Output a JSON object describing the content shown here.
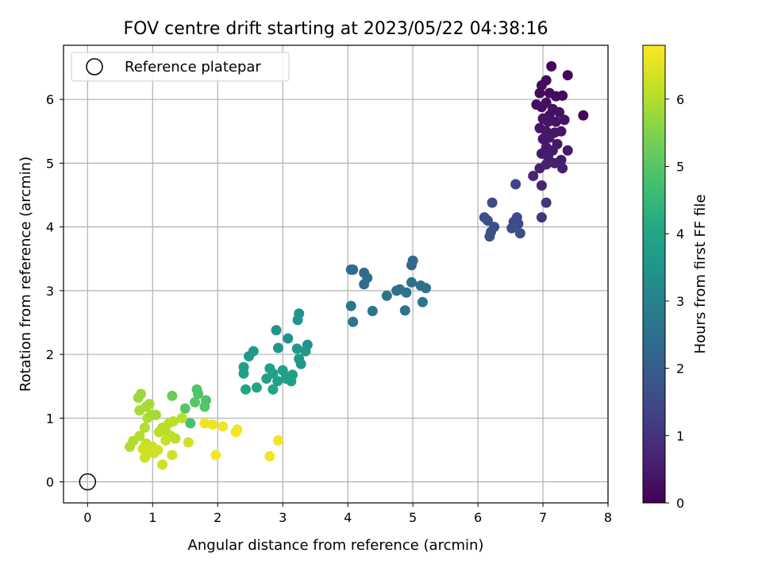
{
  "chart_data": {
    "type": "scatter",
    "title": "FOV centre drift starting at 2023/05/22 04:38:16",
    "xlabel": "Angular distance from reference (arcmin)",
    "ylabel": "Rotation from reference (arcmin)",
    "xlim": [
      -0.37,
      8.0
    ],
    "ylim": [
      -0.33,
      6.85
    ],
    "x_ticks": [
      "0",
      "1",
      "2",
      "3",
      "4",
      "5",
      "6",
      "7",
      "8"
    ],
    "y_ticks": [
      "0",
      "1",
      "2",
      "3",
      "4",
      "5",
      "6"
    ],
    "grid": true,
    "legend": {
      "location": "upper-left",
      "entries": [
        "Reference platepar"
      ]
    },
    "reference_point": {
      "x": 0,
      "y": 0,
      "label": "Reference platepar"
    },
    "colorbar": {
      "label": "Hours from first FF file",
      "colormap": "viridis",
      "range": [
        0,
        6.8
      ],
      "ticks": [
        "0",
        "1",
        "2",
        "3",
        "4",
        "5",
        "6"
      ]
    },
    "points": [
      [
        7.13,
        6.52,
        0.1
      ],
      [
        7.38,
        6.38,
        0.1
      ],
      [
        7.05,
        6.3,
        0.2
      ],
      [
        6.98,
        6.22,
        0.2
      ],
      [
        7.1,
        6.1,
        0.2
      ],
      [
        7.2,
        6.05,
        0.2
      ],
      [
        7.3,
        6.06,
        0.15
      ],
      [
        6.95,
        6.1,
        0.2
      ],
      [
        6.9,
        5.92,
        0.25
      ],
      [
        6.98,
        5.88,
        0.25
      ],
      [
        7.05,
        5.95,
        0.25
      ],
      [
        7.15,
        5.85,
        0.3
      ],
      [
        7.25,
        5.8,
        0.3
      ],
      [
        7.1,
        5.75,
        0.3
      ],
      [
        7.0,
        5.7,
        0.35
      ],
      [
        7.08,
        5.65,
        0.35
      ],
      [
        7.2,
        5.65,
        0.35
      ],
      [
        7.33,
        5.68,
        0.35
      ],
      [
        7.62,
        5.75,
        0.1
      ],
      [
        6.95,
        5.55,
        0.4
      ],
      [
        7.05,
        5.5,
        0.4
      ],
      [
        7.18,
        5.48,
        0.4
      ],
      [
        7.28,
        5.5,
        0.4
      ],
      [
        7.1,
        5.4,
        0.45
      ],
      [
        7.0,
        5.38,
        0.45
      ],
      [
        7.22,
        5.3,
        0.45
      ],
      [
        7.05,
        5.25,
        0.5
      ],
      [
        7.15,
        5.2,
        0.5
      ],
      [
        7.38,
        5.2,
        0.5
      ],
      [
        6.98,
        5.15,
        0.5
      ],
      [
        7.08,
        5.1,
        0.55
      ],
      [
        7.28,
        5.05,
        0.55
      ],
      [
        7.18,
        5.0,
        0.6
      ],
      [
        7.05,
        4.98,
        0.6
      ],
      [
        6.95,
        4.92,
        0.6
      ],
      [
        7.3,
        4.92,
        0.6
      ],
      [
        6.85,
        4.8,
        0.7
      ],
      [
        6.98,
        4.65,
        0.7
      ],
      [
        7.05,
        4.38,
        1.0
      ],
      [
        6.98,
        4.15,
        1.0
      ],
      [
        6.58,
        4.67,
        1.3
      ],
      [
        6.22,
        4.38,
        1.5
      ],
      [
        6.1,
        4.15,
        1.6
      ],
      [
        6.15,
        4.1,
        1.6
      ],
      [
        6.25,
        4.0,
        1.6
      ],
      [
        6.2,
        3.92,
        1.7
      ],
      [
        6.18,
        3.85,
        1.7
      ],
      [
        6.55,
        4.08,
        1.5
      ],
      [
        6.6,
        4.15,
        1.5
      ],
      [
        6.62,
        4.05,
        1.5
      ],
      [
        6.52,
        3.98,
        1.6
      ],
      [
        6.65,
        3.9,
        1.6
      ],
      [
        5.0,
        3.47,
        2.3
      ],
      [
        4.98,
        3.4,
        2.3
      ],
      [
        4.05,
        3.33,
        2.4
      ],
      [
        4.08,
        3.33,
        2.4
      ],
      [
        4.25,
        3.28,
        2.4
      ],
      [
        4.3,
        3.2,
        2.4
      ],
      [
        4.25,
        3.1,
        2.4
      ],
      [
        4.98,
        3.13,
        2.5
      ],
      [
        5.12,
        3.08,
        2.5
      ],
      [
        5.2,
        3.04,
        2.5
      ],
      [
        4.75,
        3.0,
        2.6
      ],
      [
        4.8,
        3.02,
        2.6
      ],
      [
        4.9,
        2.97,
        2.6
      ],
      [
        4.6,
        2.92,
        2.6
      ],
      [
        5.15,
        2.82,
        2.6
      ],
      [
        4.05,
        2.76,
        2.7
      ],
      [
        4.38,
        2.68,
        2.7
      ],
      [
        4.88,
        2.69,
        2.6
      ],
      [
        4.08,
        2.51,
        2.7
      ],
      [
        3.25,
        2.64,
        3.5
      ],
      [
        3.23,
        2.54,
        3.5
      ],
      [
        2.9,
        2.38,
        3.5
      ],
      [
        3.08,
        2.25,
        3.5
      ],
      [
        3.38,
        2.15,
        3.4
      ],
      [
        2.93,
        2.1,
        3.6
      ],
      [
        3.22,
        2.09,
        3.6
      ],
      [
        3.35,
        2.05,
        3.6
      ],
      [
        2.55,
        2.05,
        3.7
      ],
      [
        2.48,
        1.97,
        3.7
      ],
      [
        3.25,
        1.93,
        3.6
      ],
      [
        3.28,
        1.85,
        3.6
      ],
      [
        2.4,
        1.8,
        3.8
      ],
      [
        2.4,
        1.7,
        3.8
      ],
      [
        2.8,
        1.78,
        3.8
      ],
      [
        2.85,
        1.7,
        3.8
      ],
      [
        3.0,
        1.75,
        3.8
      ],
      [
        3.05,
        1.65,
        3.8
      ],
      [
        3.15,
        1.68,
        3.8
      ],
      [
        2.75,
        1.62,
        3.8
      ],
      [
        2.92,
        1.58,
        3.8
      ],
      [
        3.13,
        1.58,
        3.8
      ],
      [
        3.05,
        1.62,
        3.8
      ],
      [
        2.6,
        1.48,
        4.0
      ],
      [
        2.43,
        1.45,
        4.0
      ],
      [
        2.85,
        1.45,
        4.0
      ],
      [
        1.68,
        1.45,
        4.9
      ],
      [
        1.7,
        1.38,
        4.9
      ],
      [
        1.82,
        1.28,
        4.9
      ],
      [
        1.65,
        1.25,
        5.0
      ],
      [
        1.8,
        1.18,
        5.0
      ],
      [
        1.5,
        1.15,
        5.0
      ],
      [
        1.58,
        0.92,
        4.8
      ],
      [
        1.3,
        1.35,
        5.2
      ],
      [
        0.82,
        1.38,
        5.8
      ],
      [
        0.78,
        1.32,
        5.8
      ],
      [
        0.95,
        1.22,
        5.9
      ],
      [
        0.9,
        1.18,
        5.9
      ],
      [
        0.8,
        1.12,
        5.9
      ],
      [
        1.05,
        1.05,
        5.9
      ],
      [
        0.92,
        1.0,
        6.0
      ],
      [
        0.98,
        1.05,
        5.9
      ],
      [
        1.25,
        0.92,
        6.1
      ],
      [
        1.32,
        0.95,
        6.1
      ],
      [
        1.45,
        1.0,
        6.1
      ],
      [
        1.15,
        0.85,
        6.1
      ],
      [
        1.2,
        0.8,
        6.1
      ],
      [
        1.1,
        0.78,
        6.1
      ],
      [
        1.28,
        0.72,
        6.1
      ],
      [
        1.35,
        0.68,
        6.1
      ],
      [
        1.2,
        0.65,
        6.2
      ],
      [
        0.88,
        0.85,
        6.0
      ],
      [
        0.8,
        0.72,
        6.0
      ],
      [
        0.7,
        0.64,
        6.0
      ],
      [
        0.65,
        0.55,
        6.0
      ],
      [
        0.9,
        0.6,
        6.2
      ],
      [
        1.0,
        0.55,
        6.3
      ],
      [
        1.08,
        0.5,
        6.3
      ],
      [
        0.95,
        0.48,
        6.3
      ],
      [
        0.9,
        0.42,
        6.3
      ],
      [
        1.02,
        0.45,
        6.3
      ],
      [
        0.88,
        0.38,
        6.3
      ],
      [
        1.55,
        0.62,
        6.3
      ],
      [
        1.3,
        0.42,
        6.3
      ],
      [
        1.15,
        0.27,
        6.3
      ],
      [
        0.85,
        0.52,
        6.3
      ],
      [
        1.8,
        0.92,
        6.65
      ],
      [
        1.92,
        0.9,
        6.65
      ],
      [
        2.08,
        0.87,
        6.65
      ],
      [
        2.3,
        0.82,
        6.7
      ],
      [
        2.28,
        0.78,
        6.7
      ],
      [
        2.93,
        0.65,
        6.7
      ],
      [
        1.97,
        0.42,
        6.7
      ],
      [
        2.8,
        0.4,
        6.7
      ]
    ]
  }
}
